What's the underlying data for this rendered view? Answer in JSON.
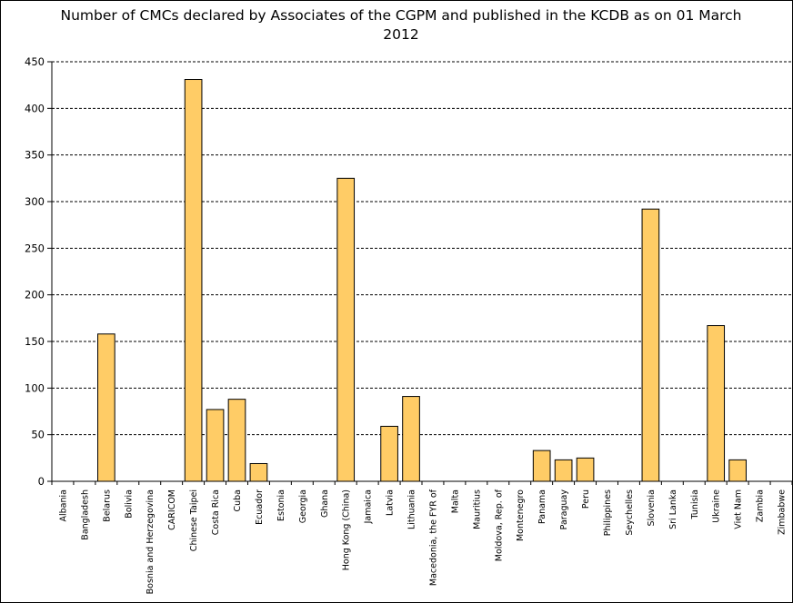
{
  "chart_data": {
    "type": "bar",
    "title": "Number of CMCs declared by Associates of the CGPM and published in the KCDB as on 01 March 2012",
    "xlabel": "",
    "ylabel": "",
    "ylim": [
      0,
      450
    ],
    "yticks": [
      0,
      50,
      100,
      150,
      200,
      250,
      300,
      350,
      400,
      450
    ],
    "grid": "horizontal-dashed",
    "bar_color": "#FFCC66",
    "categories": [
      "Albania",
      "Bangladesh",
      "Belarus",
      "Bolivia",
      "Bosnia and Herzegovina",
      "CARICOM",
      "Chinese Taipei",
      "Costa Rica",
      "Cuba",
      "Ecuador",
      "Estonia",
      "Georgia",
      "Ghana",
      "Hong Kong (China)",
      "Jamaica",
      "Latvia",
      "Lithuania",
      "Macedonia, the FYR of",
      "Malta",
      "Mauritius",
      "Moldova, Rep. of",
      "Montenegro",
      "Panama",
      "Paraguay",
      "Peru",
      "Philippines",
      "Seychelles",
      "Slovenia",
      "Sri Lanka",
      "Tunisia",
      "Ukraine",
      "Viet Nam",
      "Zambia",
      "Zimbabwe"
    ],
    "values": [
      0,
      0,
      158,
      0,
      0,
      0,
      431,
      77,
      88,
      19,
      0,
      0,
      0,
      325,
      0,
      59,
      91,
      0,
      0,
      0,
      0,
      0,
      33,
      23,
      25,
      0,
      0,
      292,
      0,
      0,
      167,
      23,
      0,
      0
    ]
  }
}
